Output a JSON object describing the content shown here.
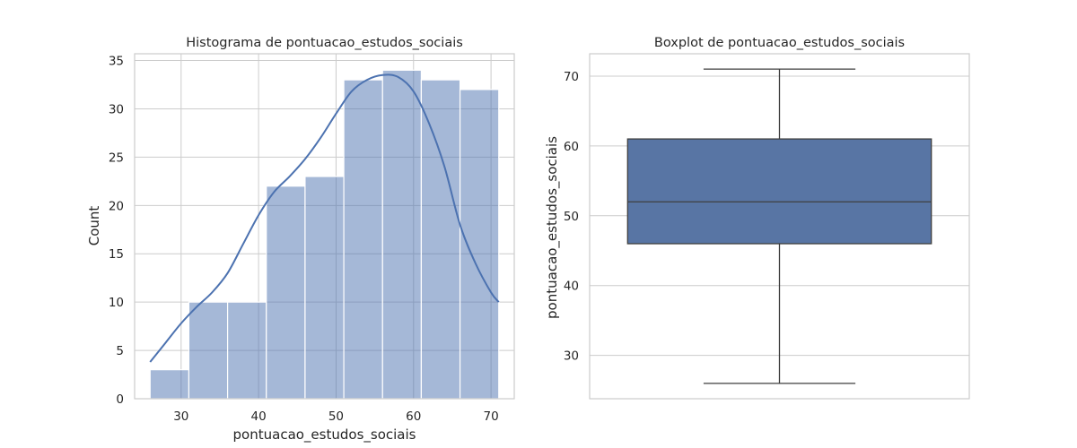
{
  "chart_data": [
    {
      "type": "bar",
      "title": "Histograma de pontuacao_estudos_sociais",
      "xlabel": "pontuacao_estudos_sociais",
      "ylabel": "Count",
      "bins": [
        {
          "start": 26.0,
          "end": 31.0,
          "count": 3
        },
        {
          "start": 31.0,
          "end": 36.0,
          "count": 10
        },
        {
          "start": 36.0,
          "end": 41.0,
          "count": 10
        },
        {
          "start": 41.0,
          "end": 46.0,
          "count": 22
        },
        {
          "start": 46.0,
          "end": 51.0,
          "count": 23
        },
        {
          "start": 51.0,
          "end": 56.0,
          "count": 33
        },
        {
          "start": 56.0,
          "end": 61.0,
          "count": 34
        },
        {
          "start": 61.0,
          "end": 66.0,
          "count": 33
        },
        {
          "start": 66.0,
          "end": 71.0,
          "count": 32
        }
      ],
      "kde": {
        "x": [
          26,
          28,
          30,
          32,
          34,
          36,
          38,
          40,
          42,
          44,
          46,
          48,
          50,
          52,
          54,
          56,
          58,
          60,
          62,
          64,
          66,
          68,
          70,
          71
        ],
        "y": [
          3.8,
          5.8,
          7.8,
          9.5,
          11.0,
          13.0,
          16.0,
          19.0,
          21.4,
          23.0,
          24.8,
          27.0,
          29.5,
          31.8,
          33.0,
          33.5,
          33.3,
          31.8,
          28.5,
          24.0,
          18.0,
          14.0,
          11.0,
          10.0
        ]
      },
      "xlim": [
        24.0,
        73.0
      ],
      "ylim": [
        0,
        35.7
      ],
      "xticks": [
        30,
        40,
        50,
        60,
        70
      ],
      "yticks": [
        0,
        5,
        10,
        15,
        20,
        25,
        30,
        35
      ],
      "grid": true,
      "colors": {
        "bar": "#4c72b0",
        "kde": "#4c72b0"
      }
    },
    {
      "type": "box",
      "title": "Boxplot de pontuacao_estudos_sociais",
      "ylabel": "pontuacao_estudos_sociais",
      "stats": {
        "min": 26,
        "q1": 46,
        "median": 52,
        "q3": 61,
        "max": 71
      },
      "ylim": [
        23.8,
        73.2
      ],
      "yticks": [
        30,
        40,
        50,
        60,
        70
      ],
      "grid": true,
      "colors": {
        "box": "#5875a4",
        "line": "#3f3f3f"
      }
    }
  ]
}
